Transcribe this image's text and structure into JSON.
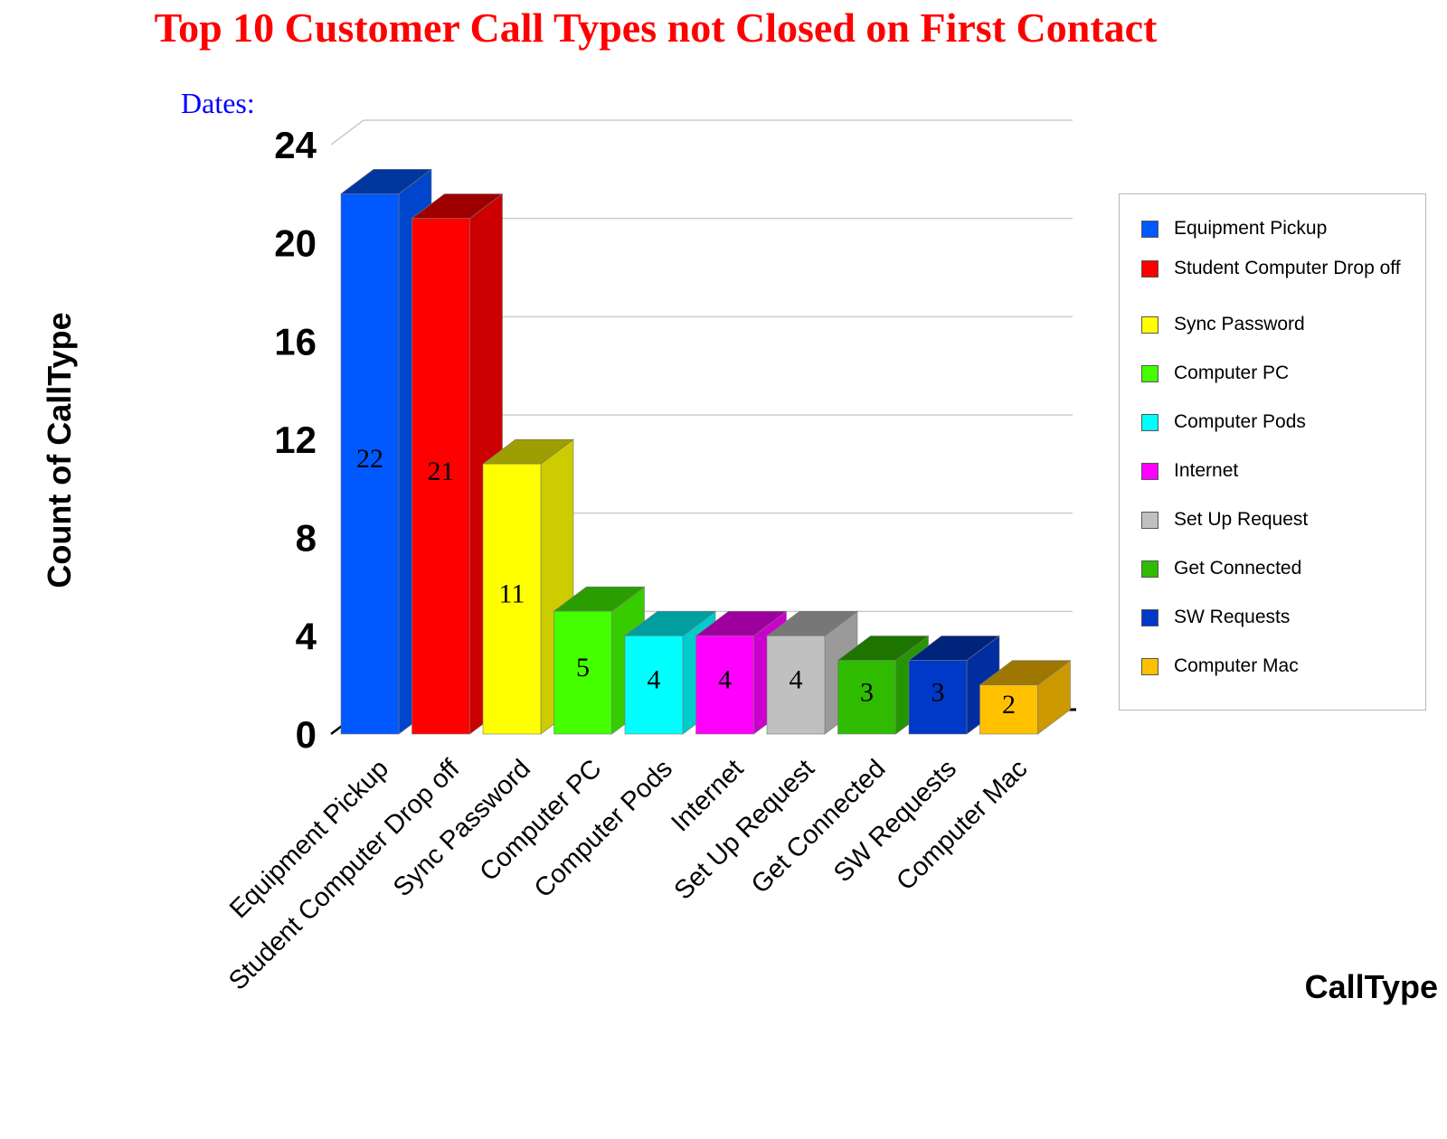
{
  "title": "Top 10 Customer Call Types not Closed on First Contact",
  "dates_label": "Dates:",
  "chart_data": {
    "type": "bar",
    "title": "Top 10 Customer Call Types not Closed on First Contact",
    "xlabel": "CallType",
    "ylabel": "Count of CallType",
    "ylim": [
      0,
      24
    ],
    "yticks": [
      "0",
      "4",
      "8",
      "12",
      "16",
      "20",
      "24"
    ],
    "categories": [
      "Equipment Pickup",
      "Student Computer Drop off",
      "Sync Password",
      "Computer PC",
      "Computer Pods",
      "Internet",
      "Set Up Request",
      "Get Connected",
      "SW Requests",
      "Computer Mac"
    ],
    "values": [
      22,
      21,
      11,
      5,
      4,
      4,
      4,
      3,
      3,
      2
    ],
    "colors": [
      "#0058ff",
      "#ff0000",
      "#ffff00",
      "#44ff00",
      "#00ffff",
      "#ff00ff",
      "#c0c0c0",
      "#2fbc00",
      "#0038c8",
      "#ffc000"
    ],
    "grid": true,
    "legend_position": "right",
    "legend": [
      "Equipment Pickup",
      "Student Computer Drop off",
      "Sync Password",
      "Computer PC",
      "Computer Pods",
      "Internet",
      "Set Up Request",
      "Get Connected",
      "SW Requests",
      "Computer Mac"
    ]
  }
}
